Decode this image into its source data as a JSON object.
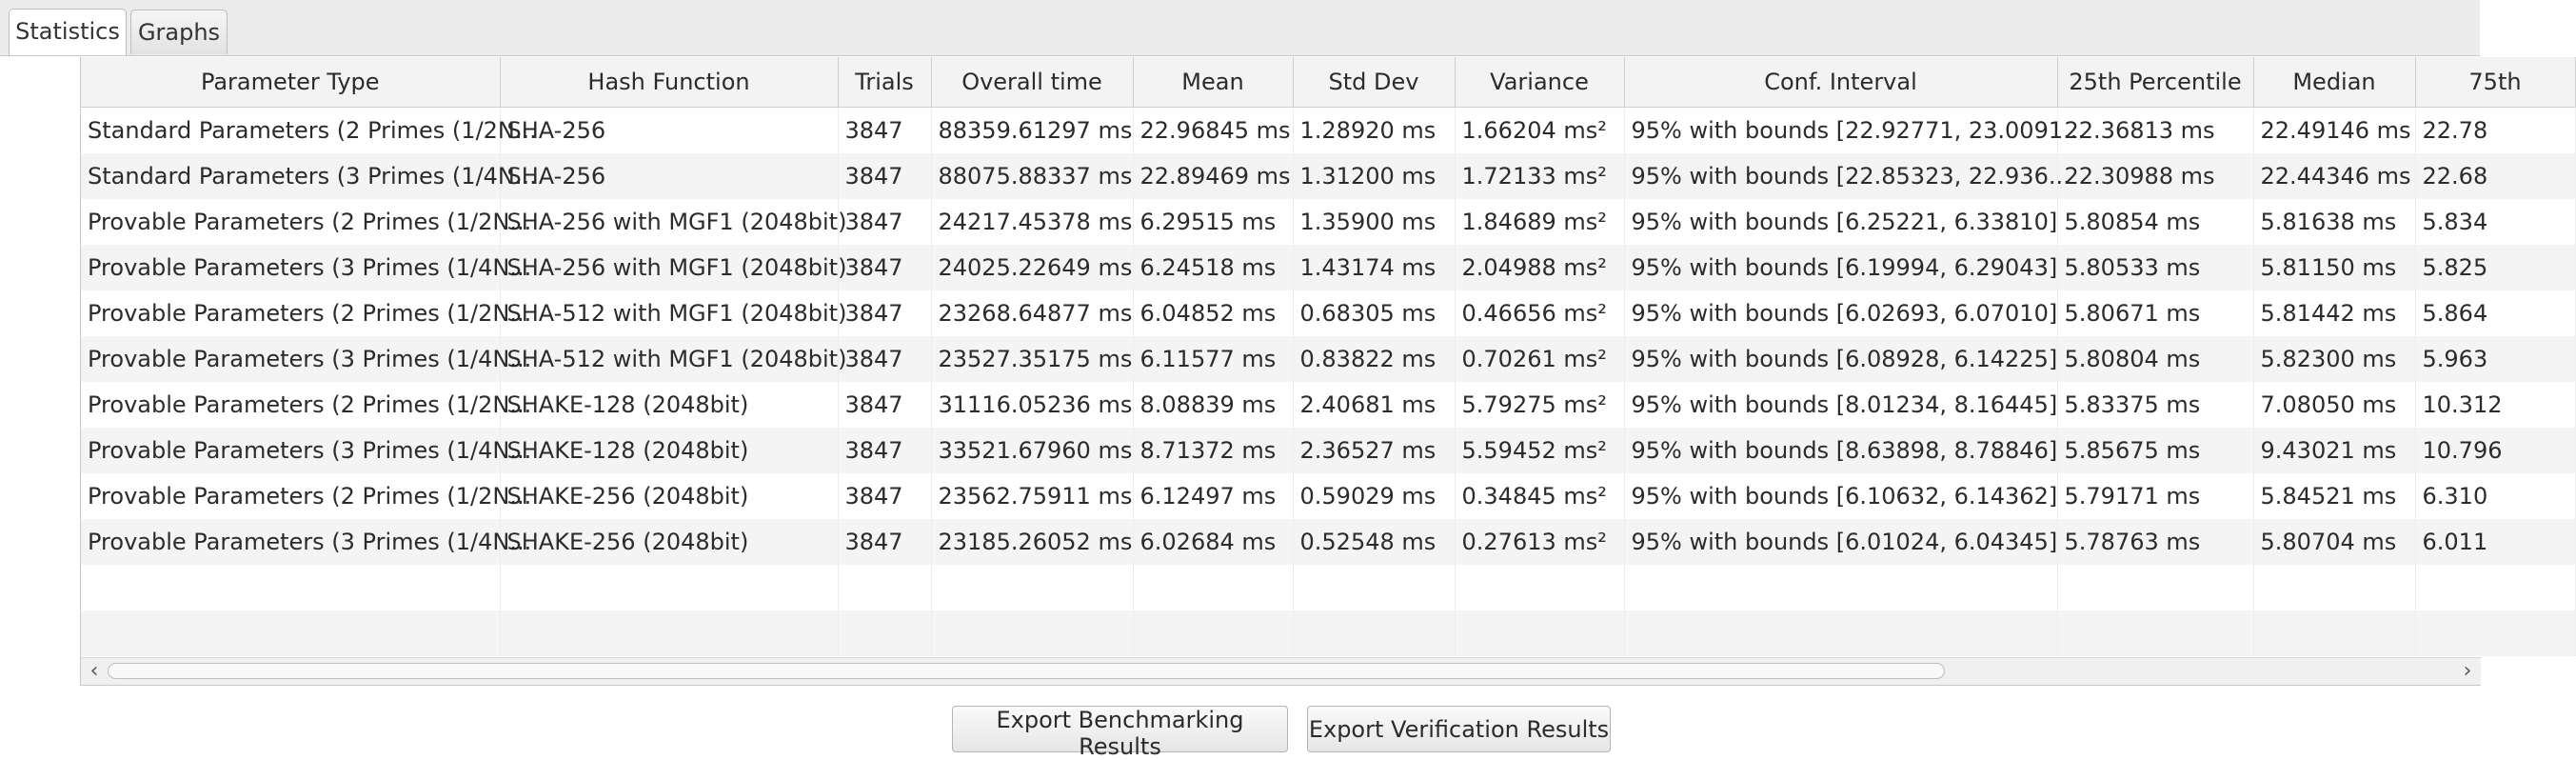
{
  "tabs": [
    {
      "label": "Statistics",
      "active": true
    },
    {
      "label": "Graphs",
      "active": false
    }
  ],
  "table": {
    "columns": [
      "Parameter Type",
      "Hash Function",
      "Trials",
      "Overall time",
      "Mean",
      "Std Dev",
      "Variance",
      "Conf. Interval",
      "25th Percentile",
      "Median",
      "75th"
    ],
    "rows": [
      [
        "Standard Parameters (2 Primes (1/2N...",
        "SHA-256",
        "3847",
        "88359.61297 ms",
        "22.96845 ms",
        "1.28920 ms",
        "1.66204 ms²",
        "95% with bounds [22.92771, 23.0091...",
        "22.36813 ms",
        "22.49146 ms",
        "22.78"
      ],
      [
        "Standard Parameters (3 Primes (1/4N...",
        "SHA-256",
        "3847",
        "88075.88337 ms",
        "22.89469 ms",
        "1.31200 ms",
        "1.72133 ms²",
        "95% with bounds [22.85323, 22.936...",
        "22.30988 ms",
        "22.44346 ms",
        "22.68"
      ],
      [
        "Provable Parameters (2 Primes (1/2N...",
        "SHA-256 with MGF1 (2048bit)",
        "3847",
        "24217.45378 ms",
        "6.29515 ms",
        "1.35900 ms",
        "1.84689 ms²",
        "95% with bounds [6.25221, 6.33810]",
        "5.80854 ms",
        "5.81638 ms",
        "5.834"
      ],
      [
        "Provable Parameters (3 Primes (1/4N...",
        "SHA-256 with MGF1 (2048bit)",
        "3847",
        "24025.22649 ms",
        "6.24518 ms",
        "1.43174 ms",
        "2.04988 ms²",
        "95% with bounds [6.19994, 6.29043]",
        "5.80533 ms",
        "5.81150 ms",
        "5.825"
      ],
      [
        "Provable Parameters (2 Primes (1/2N...",
        "SHA-512 with MGF1 (2048bit)",
        "3847",
        "23268.64877 ms",
        "6.04852 ms",
        "0.68305 ms",
        "0.46656 ms²",
        "95% with bounds [6.02693, 6.07010]",
        "5.80671 ms",
        "5.81442 ms",
        "5.864"
      ],
      [
        "Provable Parameters (3 Primes (1/4N...",
        "SHA-512 with MGF1 (2048bit)",
        "3847",
        "23527.35175 ms",
        "6.11577 ms",
        "0.83822 ms",
        "0.70261 ms²",
        "95% with bounds [6.08928, 6.14225]",
        "5.80804 ms",
        "5.82300 ms",
        "5.963"
      ],
      [
        "Provable Parameters (2 Primes (1/2N...",
        "SHAKE-128 (2048bit)",
        "3847",
        "31116.05236 ms",
        "8.08839 ms",
        "2.40681 ms",
        "5.79275 ms²",
        "95% with bounds [8.01234, 8.16445]",
        "5.83375 ms",
        "7.08050 ms",
        "10.312"
      ],
      [
        "Provable Parameters (3 Primes (1/4N...",
        "SHAKE-128 (2048bit)",
        "3847",
        "33521.67960 ms",
        "8.71372 ms",
        "2.36527 ms",
        "5.59452 ms²",
        "95% with bounds [8.63898, 8.78846]",
        "5.85675 ms",
        "9.43021 ms",
        "10.796"
      ],
      [
        "Provable Parameters (2 Primes (1/2N...",
        "SHAKE-256 (2048bit)",
        "3847",
        "23562.75911 ms",
        "6.12497 ms",
        "0.59029 ms",
        "0.34845 ms²",
        "95% with bounds [6.10632, 6.14362]",
        "5.79171 ms",
        "5.84521 ms",
        "6.310"
      ],
      [
        "Provable Parameters (3 Primes (1/4N...",
        "SHAKE-256 (2048bit)",
        "3847",
        "23185.26052 ms",
        "6.02684 ms",
        "0.52548 ms",
        "0.27613 ms²",
        "95% with bounds [6.01024, 6.04345]",
        "5.78763 ms",
        "5.80704 ms",
        "6.011"
      ]
    ]
  },
  "buttons": {
    "export_benchmarking": "Export Benchmarking Results",
    "export_verification": "Export Verification Results"
  },
  "scrollbar": {
    "left_icon": "chevron-left-icon",
    "right_icon": "chevron-right-icon"
  }
}
